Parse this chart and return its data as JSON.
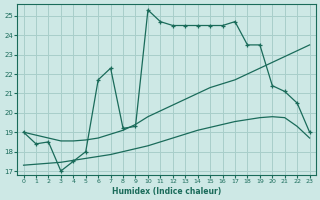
{
  "xlabel": "Humidex (Indice chaleur)",
  "background_color": "#cde8e5",
  "grid_color": "#a8ceca",
  "line_color": "#1a6b5a",
  "xlim": [
    -0.5,
    23.5
  ],
  "ylim": [
    16.8,
    25.6
  ],
  "xticks": [
    0,
    1,
    2,
    3,
    4,
    5,
    6,
    7,
    8,
    9,
    10,
    11,
    12,
    13,
    14,
    15,
    16,
    17,
    18,
    19,
    20,
    21,
    22,
    23
  ],
  "yticks": [
    17,
    18,
    19,
    20,
    21,
    22,
    23,
    24,
    25
  ],
  "line_upper_x": [
    0,
    1,
    2,
    3,
    4,
    5,
    6,
    7,
    8,
    9,
    10,
    11,
    12,
    13,
    14,
    15,
    16,
    17,
    18,
    19,
    20,
    21,
    22,
    23
  ],
  "line_upper_y": [
    19.0,
    18.4,
    18.5,
    17.0,
    17.5,
    18.0,
    21.7,
    22.3,
    19.2,
    19.3,
    25.3,
    24.7,
    24.5,
    24.5,
    24.5,
    24.5,
    24.5,
    24.7,
    23.5,
    23.5,
    21.4,
    21.1,
    20.5,
    19.0
  ],
  "line_mid_x": [
    0,
    1,
    2,
    3,
    4,
    5,
    6,
    7,
    8,
    9,
    10,
    11,
    12,
    13,
    14,
    15,
    16,
    17,
    18,
    19,
    20,
    21,
    22,
    23
  ],
  "line_mid_y": [
    19.0,
    18.85,
    18.7,
    18.55,
    18.55,
    18.6,
    18.7,
    18.9,
    19.1,
    19.4,
    19.8,
    20.1,
    20.4,
    20.7,
    21.0,
    21.3,
    21.5,
    21.7,
    22.0,
    22.3,
    22.6,
    22.9,
    23.2,
    23.5
  ],
  "line_low_x": [
    0,
    1,
    2,
    3,
    4,
    5,
    6,
    7,
    8,
    9,
    10,
    11,
    12,
    13,
    14,
    15,
    16,
    17,
    18,
    19,
    20,
    21,
    22,
    23
  ],
  "line_low_y": [
    17.3,
    17.35,
    17.4,
    17.45,
    17.55,
    17.65,
    17.75,
    17.85,
    18.0,
    18.15,
    18.3,
    18.5,
    18.7,
    18.9,
    19.1,
    19.25,
    19.4,
    19.55,
    19.65,
    19.75,
    19.8,
    19.75,
    19.3,
    18.7
  ]
}
